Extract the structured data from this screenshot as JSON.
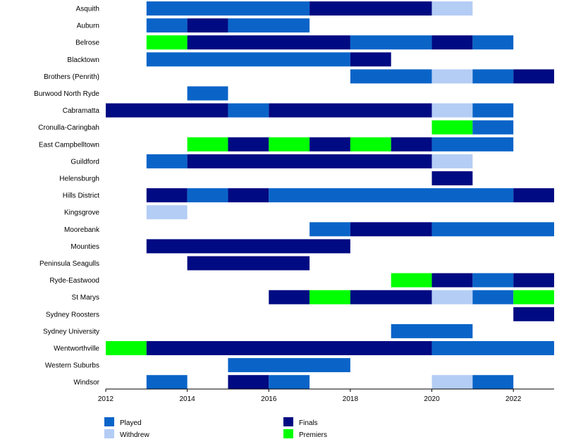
{
  "chart_data": {
    "type": "timeline",
    "x_range": [
      2012,
      2023
    ],
    "x_ticks": [
      2012,
      2014,
      2016,
      2018,
      2020,
      2022
    ],
    "status_colors": {
      "Played": "#0a64c8",
      "Withdrew": "#b4cdf5",
      "Finals": "#000a82",
      "Premiers": "#00ff00"
    },
    "legend": [
      "Played",
      "Withdrew",
      "Finals",
      "Premiers"
    ],
    "teams": [
      {
        "name": "Asquith",
        "seasons": [
          {
            "from": 2013,
            "to": 2017,
            "status": "Played"
          },
          {
            "from": 2017,
            "to": 2020,
            "status": "Finals"
          },
          {
            "from": 2020,
            "to": 2021,
            "status": "Withdrew"
          }
        ]
      },
      {
        "name": "Auburn",
        "seasons": [
          {
            "from": 2013,
            "to": 2014,
            "status": "Played"
          },
          {
            "from": 2014,
            "to": 2015,
            "status": "Finals"
          },
          {
            "from": 2015,
            "to": 2017,
            "status": "Played"
          }
        ]
      },
      {
        "name": "Belrose",
        "seasons": [
          {
            "from": 2013,
            "to": 2014,
            "status": "Premiers"
          },
          {
            "from": 2014,
            "to": 2018,
            "status": "Finals"
          },
          {
            "from": 2018,
            "to": 2020,
            "status": "Played"
          },
          {
            "from": 2020,
            "to": 2021,
            "status": "Finals"
          },
          {
            "from": 2021,
            "to": 2022,
            "status": "Played"
          }
        ]
      },
      {
        "name": "Blacktown",
        "seasons": [
          {
            "from": 2013,
            "to": 2018,
            "status": "Played"
          },
          {
            "from": 2018,
            "to": 2019,
            "status": "Finals"
          }
        ]
      },
      {
        "name": "Brothers (Penrith)",
        "seasons": [
          {
            "from": 2018,
            "to": 2020,
            "status": "Played"
          },
          {
            "from": 2020,
            "to": 2021,
            "status": "Withdrew"
          },
          {
            "from": 2021,
            "to": 2022,
            "status": "Played"
          },
          {
            "from": 2022,
            "to": 2023,
            "status": "Finals"
          }
        ]
      },
      {
        "name": "Burwood North Ryde",
        "seasons": [
          {
            "from": 2014,
            "to": 2015,
            "status": "Played"
          }
        ]
      },
      {
        "name": "Cabramatta",
        "seasons": [
          {
            "from": 2012,
            "to": 2015,
            "status": "Finals"
          },
          {
            "from": 2015,
            "to": 2016,
            "status": "Played"
          },
          {
            "from": 2016,
            "to": 2020,
            "status": "Finals"
          },
          {
            "from": 2020,
            "to": 2021,
            "status": "Withdrew"
          },
          {
            "from": 2021,
            "to": 2022,
            "status": "Played"
          }
        ]
      },
      {
        "name": "Cronulla-Caringbah",
        "seasons": [
          {
            "from": 2020,
            "to": 2021,
            "status": "Premiers"
          },
          {
            "from": 2021,
            "to": 2022,
            "status": "Played"
          }
        ]
      },
      {
        "name": "East Campbelltown",
        "seasons": [
          {
            "from": 2014,
            "to": 2015,
            "status": "Premiers"
          },
          {
            "from": 2015,
            "to": 2016,
            "status": "Finals"
          },
          {
            "from": 2016,
            "to": 2017,
            "status": "Premiers"
          },
          {
            "from": 2017,
            "to": 2018,
            "status": "Finals"
          },
          {
            "from": 2018,
            "to": 2019,
            "status": "Premiers"
          },
          {
            "from": 2019,
            "to": 2020,
            "status": "Finals"
          },
          {
            "from": 2020,
            "to": 2022,
            "status": "Played"
          }
        ]
      },
      {
        "name": "Guildford",
        "seasons": [
          {
            "from": 2013,
            "to": 2014,
            "status": "Played"
          },
          {
            "from": 2014,
            "to": 2020,
            "status": "Finals"
          },
          {
            "from": 2020,
            "to": 2021,
            "status": "Withdrew"
          }
        ]
      },
      {
        "name": "Helensburgh",
        "seasons": [
          {
            "from": 2020,
            "to": 2021,
            "status": "Finals"
          }
        ]
      },
      {
        "name": "Hills District",
        "seasons": [
          {
            "from": 2013,
            "to": 2014,
            "status": "Finals"
          },
          {
            "from": 2014,
            "to": 2015,
            "status": "Played"
          },
          {
            "from": 2015,
            "to": 2016,
            "status": "Finals"
          },
          {
            "from": 2016,
            "to": 2022,
            "status": "Played"
          },
          {
            "from": 2022,
            "to": 2023,
            "status": "Finals"
          }
        ]
      },
      {
        "name": "Kingsgrove",
        "seasons": [
          {
            "from": 2013,
            "to": 2014,
            "status": "Withdrew"
          }
        ]
      },
      {
        "name": "Moorebank",
        "seasons": [
          {
            "from": 2017,
            "to": 2018,
            "status": "Played"
          },
          {
            "from": 2018,
            "to": 2020,
            "status": "Finals"
          },
          {
            "from": 2020,
            "to": 2023,
            "status": "Played"
          }
        ]
      },
      {
        "name": "Mounties",
        "seasons": [
          {
            "from": 2013,
            "to": 2018,
            "status": "Finals"
          }
        ]
      },
      {
        "name": "Peninsula Seagulls",
        "seasons": [
          {
            "from": 2014,
            "to": 2017,
            "status": "Finals"
          }
        ]
      },
      {
        "name": "Ryde-Eastwood",
        "seasons": [
          {
            "from": 2019,
            "to": 2020,
            "status": "Premiers"
          },
          {
            "from": 2020,
            "to": 2021,
            "status": "Finals"
          },
          {
            "from": 2021,
            "to": 2022,
            "status": "Played"
          },
          {
            "from": 2022,
            "to": 2023,
            "status": "Finals"
          }
        ]
      },
      {
        "name": "St Marys",
        "seasons": [
          {
            "from": 2016,
            "to": 2017,
            "status": "Finals"
          },
          {
            "from": 2017,
            "to": 2018,
            "status": "Premiers"
          },
          {
            "from": 2018,
            "to": 2020,
            "status": "Finals"
          },
          {
            "from": 2020,
            "to": 2021,
            "status": "Withdrew"
          },
          {
            "from": 2021,
            "to": 2022,
            "status": "Played"
          },
          {
            "from": 2022,
            "to": 2023,
            "status": "Premiers"
          }
        ]
      },
      {
        "name": "Sydney Roosters",
        "seasons": [
          {
            "from": 2022,
            "to": 2023,
            "status": "Finals"
          }
        ]
      },
      {
        "name": "Sydney University",
        "seasons": [
          {
            "from": 2019,
            "to": 2021,
            "status": "Played"
          }
        ]
      },
      {
        "name": "Wentworthville",
        "seasons": [
          {
            "from": 2012,
            "to": 2013,
            "status": "Premiers"
          },
          {
            "from": 2013,
            "to": 2020,
            "status": "Finals"
          },
          {
            "from": 2020,
            "to": 2023,
            "status": "Played"
          }
        ]
      },
      {
        "name": "Western Suburbs",
        "seasons": [
          {
            "from": 2015,
            "to": 2018,
            "status": "Played"
          }
        ]
      },
      {
        "name": "Windsor",
        "seasons": [
          {
            "from": 2013,
            "to": 2014,
            "status": "Played"
          },
          {
            "from": 2015,
            "to": 2016,
            "status": "Finals"
          },
          {
            "from": 2016,
            "to": 2017,
            "status": "Played"
          },
          {
            "from": 2020,
            "to": 2021,
            "status": "Withdrew"
          },
          {
            "from": 2021,
            "to": 2022,
            "status": "Played"
          }
        ]
      }
    ]
  }
}
